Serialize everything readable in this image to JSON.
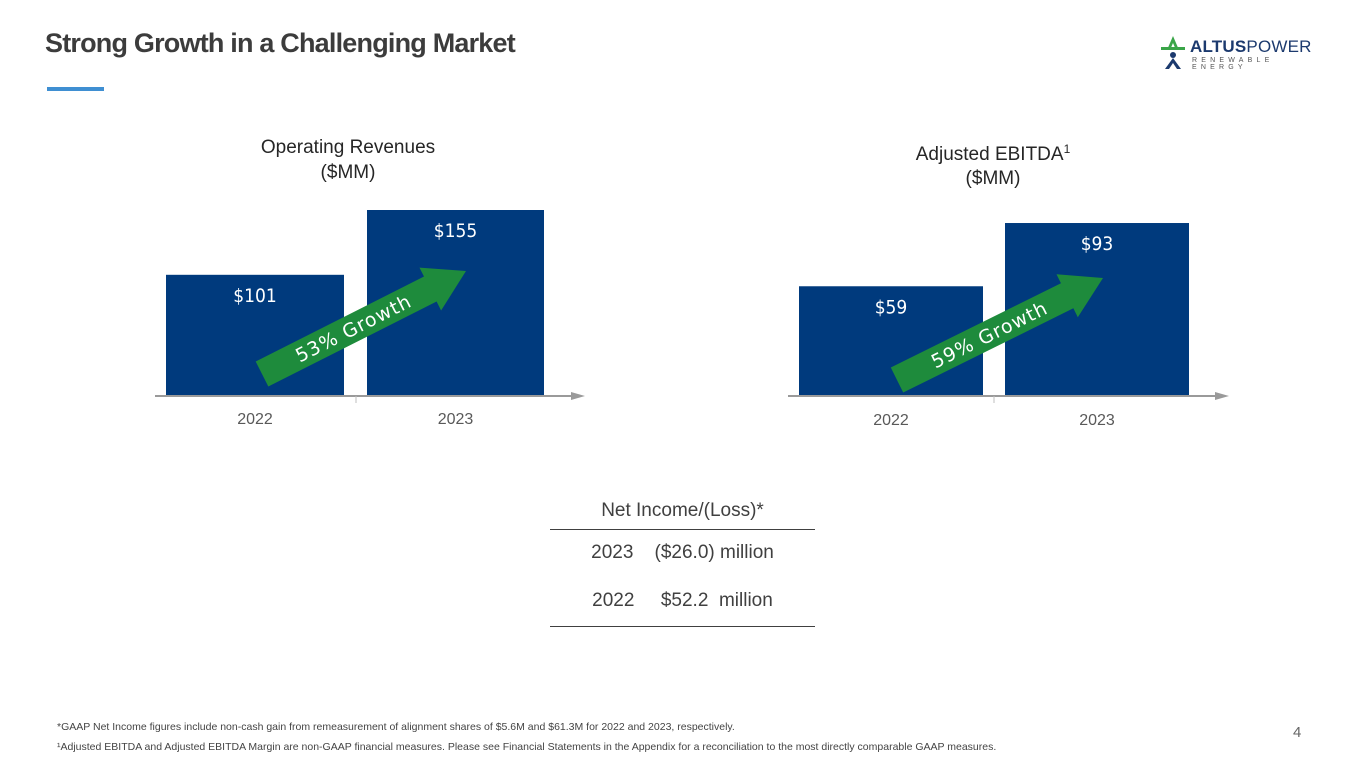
{
  "slide": {
    "title": "Strong Growth in a Challenging Market",
    "page_number": "4"
  },
  "logo": {
    "name_bold": "ALTUS",
    "name_light": "POWER",
    "tagline": "RENEWABLE ENERGY",
    "colors": {
      "green": "#3aa548",
      "navy": "#1c3a6e"
    }
  },
  "chart_data": [
    {
      "type": "bar",
      "title_line1": "Operating Revenues",
      "title_line2": "($MM)",
      "categories": [
        "2022",
        "2023"
      ],
      "values": [
        101,
        155
      ],
      "labels": [
        "$101",
        "$155"
      ],
      "growth_label": "53% Growth",
      "ylim": [
        0,
        160
      ],
      "bar_color": "#003a7d",
      "arrow_color": "#1e8b3c"
    },
    {
      "type": "bar",
      "title_line1": "Adjusted EBITDA",
      "title_sup": "1",
      "title_line2": "($MM)",
      "categories": [
        "2022",
        "2023"
      ],
      "values": [
        59,
        93
      ],
      "labels": [
        "$59",
        "$93"
      ],
      "growth_label": "59% Growth",
      "ylim": [
        0,
        100
      ],
      "bar_color": "#003a7d",
      "arrow_color": "#1e8b3c"
    }
  ],
  "net_income": {
    "header": "Net Income/(Loss)*",
    "rows": [
      {
        "year": "2023",
        "value": "($26.0) million"
      },
      {
        "year": "2022",
        "value": "$52.2  million"
      }
    ]
  },
  "footnotes": {
    "gaap": "*GAAP Net Income figures include non-cash gain from remeasurement of alignment shares of $5.6M and $61.3M for 2022 and 2023, respectively.",
    "ebitda": "¹Adjusted EBITDA and Adjusted EBITDA Margin are non-GAAP financial measures. Please see Financial Statements in the Appendix for a reconciliation to the most directly comparable GAAP measures."
  }
}
